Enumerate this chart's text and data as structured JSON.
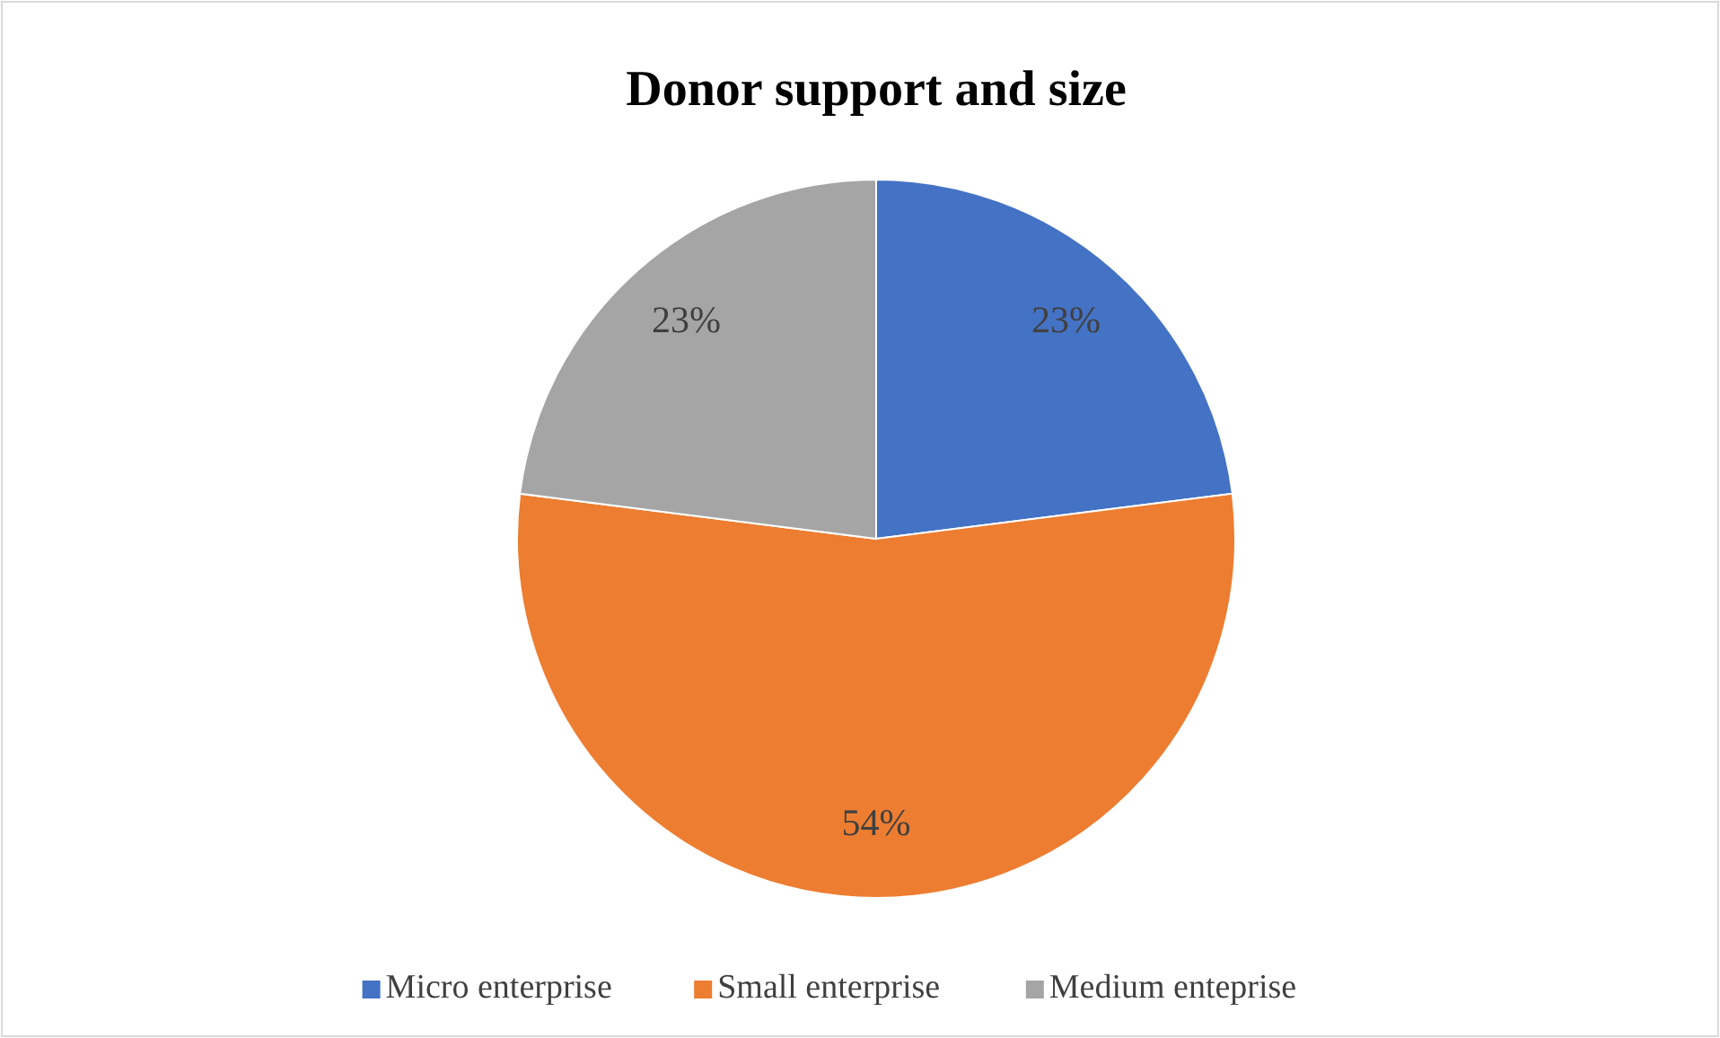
{
  "chart_data": {
    "type": "pie",
    "title": "Donor support and size",
    "categories": [
      "Micro enterprise",
      "Small enterprise",
      "Medium enteprise"
    ],
    "values": [
      23,
      54,
      23
    ],
    "value_labels": [
      "23%",
      "54%",
      "23%"
    ],
    "colors": [
      "#4472c4",
      "#ed7d31",
      "#a5a5a5"
    ],
    "legend": "bottom"
  }
}
